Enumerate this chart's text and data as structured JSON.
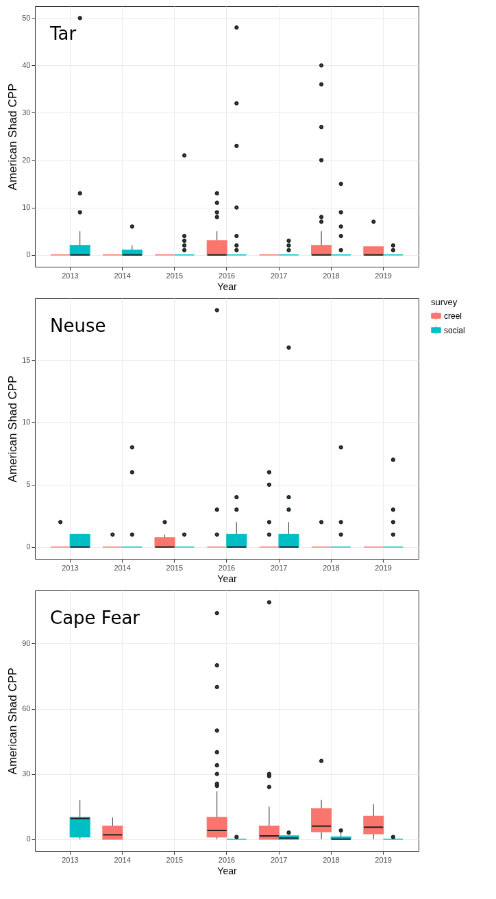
{
  "chart_data": [
    {
      "type": "box",
      "title": "Tar",
      "xlabel": "Year",
      "ylabel": "American Shad CPP",
      "categories": [
        "2013",
        "2014",
        "2015",
        "2016",
        "2017",
        "2018",
        "2019"
      ],
      "ylim": [
        -2.5,
        52.5
      ],
      "yticks": [
        0,
        10,
        20,
        30,
        40,
        50
      ],
      "grid": true,
      "legend": false,
      "series": [
        {
          "color": "#f8766d",
          "boxes": [
            {
              "low": 0,
              "q1": 0,
              "median": 0,
              "q3": 0,
              "high": 0
            },
            {
              "low": 0,
              "q1": 0,
              "median": 0,
              "q3": 0,
              "high": 0
            },
            {
              "low": 0,
              "q1": 0,
              "median": 0,
              "q3": 0,
              "high": 0
            },
            {
              "low": 0,
              "q1": 0,
              "median": 0,
              "q3": 3,
              "high": 5,
              "outliers": [
                8,
                9,
                11,
                13
              ]
            },
            {
              "low": 0,
              "q1": 0,
              "median": 0,
              "q3": 0,
              "high": 0
            },
            {
              "low": 0,
              "q1": 0,
              "median": 0,
              "q3": 2,
              "high": 5,
              "outliers": [
                7,
                8,
                20,
                27,
                36,
                40
              ]
            },
            {
              "low": 0,
              "q1": 0,
              "median": 0,
              "q3": 1.7,
              "high": 1.7,
              "outliers": [
                7
              ]
            }
          ]
        },
        {
          "color": "#00bfc4",
          "boxes": [
            {
              "low": 0,
              "q1": 0,
              "median": 0,
              "q3": 2,
              "high": 5,
              "outliers": [
                9,
                13,
                50
              ]
            },
            {
              "low": 0,
              "q1": 0,
              "median": 0,
              "q3": 1,
              "high": 2,
              "outliers": [
                6
              ]
            },
            {
              "low": 0,
              "q1": 0,
              "median": 0,
              "q3": 0,
              "high": 0,
              "outliers": [
                1,
                2,
                3,
                4,
                21
              ]
            },
            {
              "low": 0,
              "q1": 0,
              "median": 0,
              "q3": 0,
              "high": 0,
              "outliers": [
                1,
                2,
                4,
                10,
                23,
                32,
                48
              ]
            },
            {
              "low": 0,
              "q1": 0,
              "median": 0,
              "q3": 0,
              "high": 0,
              "outliers": [
                1,
                2,
                3
              ]
            },
            {
              "low": 0,
              "q1": 0,
              "median": 0,
              "q3": 0,
              "high": 0,
              "outliers": [
                1,
                4,
                6,
                9,
                15
              ]
            },
            {
              "low": 0,
              "q1": 0,
              "median": 0,
              "q3": 0,
              "high": 0,
              "outliers": [
                1,
                2
              ]
            }
          ]
        }
      ]
    },
    {
      "type": "box",
      "title": "Neuse",
      "xlabel": "Year",
      "ylabel": "American Shad CPP",
      "categories": [
        "2013",
        "2014",
        "2015",
        "2016",
        "2017",
        "2018",
        "2019"
      ],
      "ylim": [
        -0.95,
        19.95
      ],
      "yticks": [
        0,
        5,
        10,
        15
      ],
      "grid": true,
      "legend": "right",
      "legend_title": "survey",
      "series": [
        {
          "name": "creel",
          "color": "#f8766d",
          "boxes": [
            {
              "low": 0,
              "q1": 0,
              "median": 0,
              "q3": 0,
              "high": 0,
              "outliers": [
                2
              ]
            },
            {
              "low": 0,
              "q1": 0,
              "median": 0,
              "q3": 0,
              "high": 0,
              "outliers": [
                1
              ]
            },
            {
              "low": 0,
              "q1": 0,
              "median": 0,
              "q3": 0.75,
              "high": 1,
              "outliers": [
                2
              ]
            },
            {
              "low": 0,
              "q1": 0,
              "median": 0,
              "q3": 0,
              "high": 0,
              "outliers": [
                1,
                3,
                19
              ]
            },
            {
              "low": 0,
              "q1": 0,
              "median": 0,
              "q3": 0,
              "high": 0,
              "outliers": [
                1,
                2,
                5,
                6
              ]
            },
            {
              "low": 0,
              "q1": 0,
              "median": 0,
              "q3": 0,
              "high": 0,
              "outliers": [
                2
              ]
            },
            {
              "low": 0,
              "q1": 0,
              "median": 0,
              "q3": 0,
              "high": 0
            }
          ]
        },
        {
          "name": "social",
          "color": "#00bfc4",
          "boxes": [
            {
              "low": 0,
              "q1": 0,
              "median": 0,
              "q3": 1,
              "high": 1
            },
            {
              "low": 0,
              "q1": 0,
              "median": 0,
              "q3": 0,
              "high": 0,
              "outliers": [
                1,
                6,
                8
              ]
            },
            {
              "low": 0,
              "q1": 0,
              "median": 0,
              "q3": 0,
              "high": 0,
              "outliers": [
                1
              ]
            },
            {
              "low": 0,
              "q1": 0,
              "median": 0,
              "q3": 1,
              "high": 2,
              "outliers": [
                3,
                4
              ]
            },
            {
              "low": 0,
              "q1": 0,
              "median": 0,
              "q3": 1,
              "high": 2,
              "outliers": [
                3,
                4,
                16
              ]
            },
            {
              "low": 0,
              "q1": 0,
              "median": 0,
              "q3": 0,
              "high": 0,
              "outliers": [
                1,
                2,
                8
              ]
            },
            {
              "low": 0,
              "q1": 0,
              "median": 0,
              "q3": 0,
              "high": 0,
              "outliers": [
                1,
                2,
                3,
                7
              ]
            }
          ]
        }
      ]
    },
    {
      "type": "box",
      "title": "Cape Fear",
      "xlabel": "Year",
      "ylabel": "American Shad CPP",
      "categories": [
        "2013",
        "2014",
        "2015",
        "2016",
        "2017",
        "2018",
        "2019"
      ],
      "ylim": [
        -5.45,
        114.45
      ],
      "yticks": [
        0,
        30,
        60,
        90
      ],
      "grid": true,
      "legend": false,
      "series": [
        {
          "color": "#f8766d",
          "boxes": [
            null,
            {
              "low": 0,
              "q1": 0,
              "median": 2,
              "q3": 6,
              "high": 10
            },
            null,
            {
              "low": 0,
              "q1": 1,
              "median": 4,
              "q3": 10,
              "high": 22,
              "outliers": [
                24.5,
                25.5,
                30,
                34,
                40,
                50,
                70,
                80,
                104
              ]
            },
            {
              "low": 0,
              "q1": 0,
              "median": 1.5,
              "q3": 6,
              "high": 15,
              "outliers": [
                24,
                29,
                30,
                109
              ]
            },
            {
              "low": 0,
              "q1": 3.5,
              "median": 6,
              "q3": 14,
              "high": 18,
              "outliers": [
                36
              ]
            },
            {
              "low": 0,
              "q1": 2.5,
              "median": 5.5,
              "q3": 10.5,
              "high": 16
            }
          ]
        },
        {
          "color": "#00bfc4",
          "boxes": [
            {
              "low": 0,
              "q1": 1,
              "median": 9.5,
              "q3": 10,
              "high": 18
            },
            null,
            null,
            {
              "low": 0,
              "q1": 0,
              "median": 0,
              "q3": 0,
              "high": 0,
              "outliers": [
                1
              ]
            },
            {
              "low": 0,
              "q1": 0,
              "median": 0.5,
              "q3": 1.5,
              "high": 1.5,
              "outliers": [
                3
              ]
            },
            {
              "low": 0,
              "q1": 0,
              "median": 0,
              "q3": 1,
              "high": 3,
              "outliers": [
                4
              ]
            },
            {
              "low": 0,
              "q1": 0,
              "median": 0,
              "q3": 0,
              "high": 0,
              "outliers": [
                1
              ]
            }
          ]
        }
      ]
    }
  ]
}
